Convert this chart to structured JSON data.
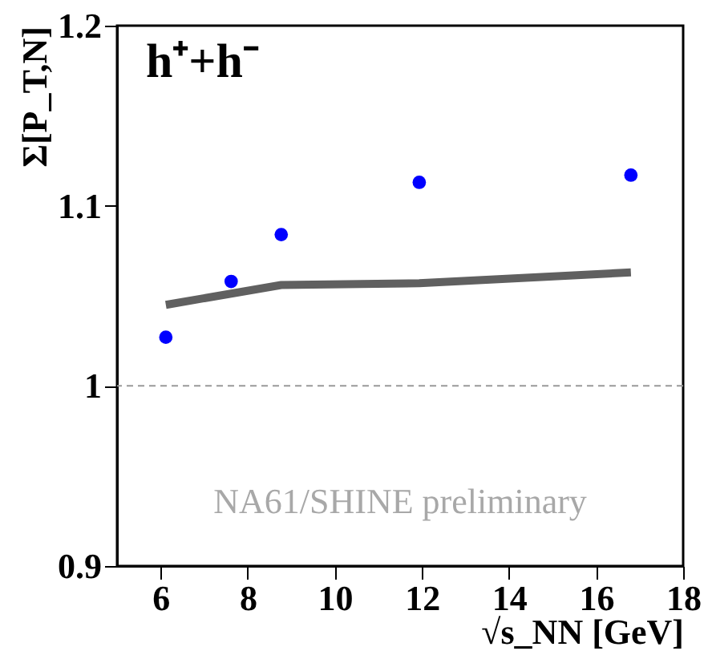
{
  "chart_data": {
    "type": "scatter",
    "xlabel": "√s_NN [GeV]",
    "ylabel": "Σ[P_T,N]",
    "annotations": [
      "h⁺+h⁻",
      "NA61/SHINE preliminary"
    ],
    "x": [
      6.12,
      7.62,
      8.77,
      11.94,
      16.8
    ],
    "series": [
      {
        "color": "#0000ff",
        "marker": "circle",
        "values": [
          1.027,
          1.058,
          1.084,
          1.113,
          1.117
        ]
      },
      {
        "type": "line",
        "color": "#606060",
        "values": [
          1.045,
          null,
          1.056,
          1.057,
          1.063
        ]
      }
    ],
    "xlim": [
      5,
      18
    ],
    "xticks": [
      6,
      8,
      10,
      12,
      14,
      16,
      18
    ],
    "ylim": [
      0.9,
      1.2
    ],
    "yticks": [
      0.9,
      1,
      1.1,
      1.2
    ],
    "ref_lines": [
      {
        "axis": "y",
        "value": 1,
        "color": "#999999",
        "line_style": "dashed"
      }
    ]
  }
}
